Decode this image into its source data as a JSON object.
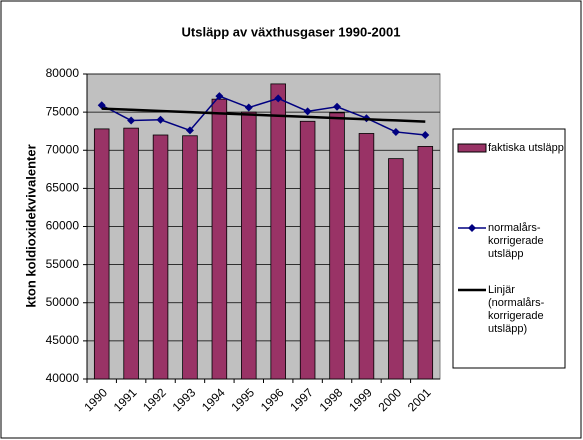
{
  "chart_data": {
    "type": "bar",
    "title": "Utsläpp av växthusgaser 1990-2001",
    "y_label": "kton koldioxidekvivalenter",
    "categories": [
      "1990",
      "1991",
      "1992",
      "1993",
      "1994",
      "1995",
      "1996",
      "1997",
      "1998",
      "1999",
      "2000",
      "2001"
    ],
    "series": [
      {
        "name": "faktiska utsläpp",
        "type": "bar",
        "color": "#993366",
        "values": [
          72800,
          72900,
          72000,
          71900,
          76700,
          75000,
          78700,
          73800,
          74900,
          72200,
          68900,
          70500
        ]
      },
      {
        "name": "normalårs-korrigerade utsläpp",
        "type": "line",
        "marker": "diamond",
        "color": "#000080",
        "values": [
          75900,
          73900,
          74000,
          72600,
          77100,
          75600,
          76800,
          75100,
          75700,
          74200,
          72400,
          72000
        ]
      },
      {
        "name": "Linjär (normalårs-korrigerade utsläpp)",
        "type": "line",
        "color": "#000000",
        "values": [
          75460,
          75305,
          75150,
          74995,
          74840,
          74685,
          74530,
          74375,
          74220,
          74065,
          73910,
          73755
        ]
      }
    ],
    "ylim": [
      40000,
      80000
    ],
    "yticks": [
      40000,
      45000,
      50000,
      55000,
      60000,
      65000,
      70000,
      75000,
      80000
    ],
    "grid": true,
    "plot_background": "#c0c0c0",
    "legend": "right"
  }
}
